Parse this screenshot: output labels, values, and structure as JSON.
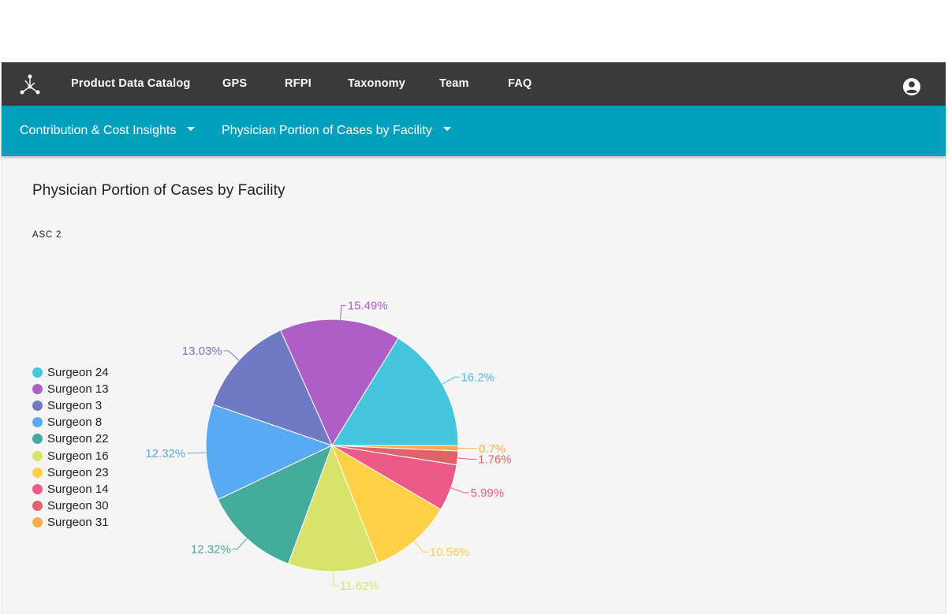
{
  "topbar": {
    "logo": "network-logo-icon",
    "nav": [
      {
        "label": "Product Data Catalog"
      },
      {
        "label": "GPS"
      },
      {
        "label": "RFPI"
      },
      {
        "label": "Taxonomy"
      },
      {
        "label": "Team"
      },
      {
        "label": "FAQ"
      }
    ],
    "account_icon": "account-circle-icon"
  },
  "subbar": {
    "dropdowns": [
      {
        "label": "Contribution & Cost Insights"
      },
      {
        "label": "Physician Portion of Cases by Facility"
      }
    ]
  },
  "main": {
    "title": "Physician Portion of Cases by Facility",
    "facility": "ASC 2"
  },
  "chart_data": {
    "type": "pie",
    "title": "",
    "legend_placement": "left",
    "slices": [
      {
        "label": "Surgeon 24",
        "value": 16.2,
        "value_label": "16.2%",
        "color": "#45c6dd"
      },
      {
        "label": "Surgeon 13",
        "value": 15.49,
        "value_label": "15.49%",
        "color": "#ae5ec5"
      },
      {
        "label": "Surgeon 3",
        "value": 13.03,
        "value_label": "13.03%",
        "color": "#6e7ac3"
      },
      {
        "label": "Surgeon 8",
        "value": 12.32,
        "value_label": "12.32%",
        "color": "#5aaaf3"
      },
      {
        "label": "Surgeon 22",
        "value": 12.32,
        "value_label": "12.32%",
        "color": "#45ab9d"
      },
      {
        "label": "Surgeon 16",
        "value": 11.62,
        "value_label": "11.62%",
        "color": "#d8e469"
      },
      {
        "label": "Surgeon 23",
        "value": 10.56,
        "value_label": "10.56%",
        "color": "#fdd047"
      },
      {
        "label": "Surgeon 14",
        "value": 5.99,
        "value_label": "5.99%",
        "color": "#ee5a88"
      },
      {
        "label": "Surgeon 30",
        "value": 1.76,
        "value_label": "1.76%",
        "color": "#e0636a"
      },
      {
        "label": "Surgeon 31",
        "value": 0.7,
        "value_label": "0.7%",
        "color": "#fbaa4a"
      }
    ]
  }
}
